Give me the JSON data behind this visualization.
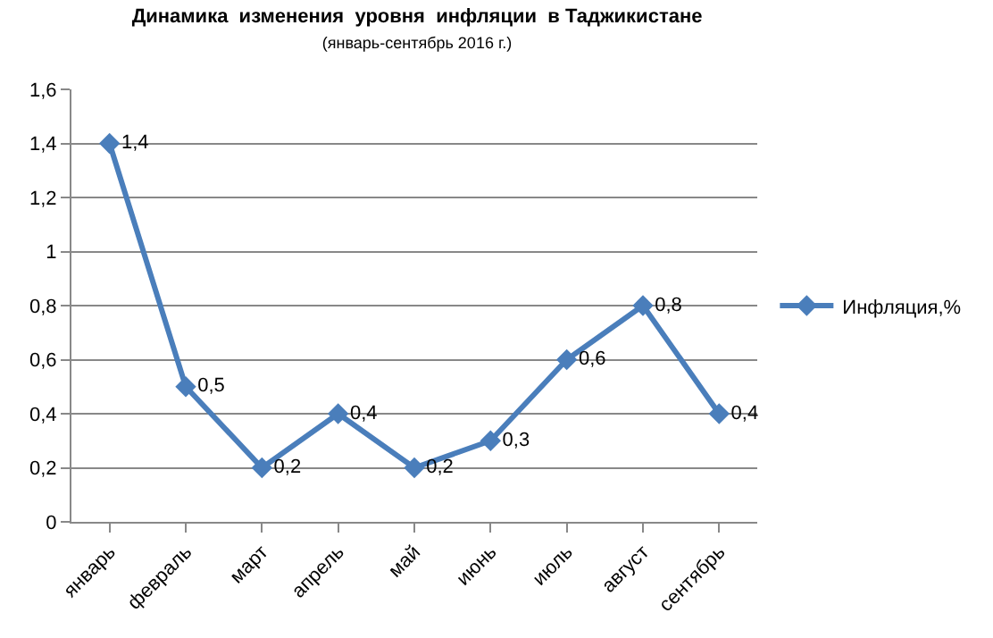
{
  "chart_data": {
    "type": "line",
    "title": "Динамика  изменения  уровня  инфляции  в Таджикистане",
    "subtitle": "(январь-сентябрь 2016 г.)",
    "categories": [
      "январь",
      "февраль",
      "март",
      "апрель",
      "май",
      "июнь",
      "июль",
      "август",
      "сентябрь"
    ],
    "series": [
      {
        "name": "Инфляция,%",
        "color": "#4a7ebb",
        "values": [
          1.4,
          0.5,
          0.2,
          0.4,
          0.2,
          0.3,
          0.6,
          0.8,
          0.4
        ],
        "value_labels": [
          "1,4",
          "0,5",
          "0,2",
          "0,4",
          "0,2",
          "0,3",
          "0,6",
          "0,8",
          "0,4"
        ]
      }
    ],
    "ylim": [
      0,
      1.6
    ],
    "yticks": [
      0,
      {
        "value": 0.2,
        "label": "0,2"
      },
      {
        "value": 0.4,
        "label": "0,4"
      },
      {
        "value": 0.6,
        "label": "0,6"
      },
      {
        "value": 0.8,
        "label": "0,8"
      },
      1,
      {
        "value": 1.2,
        "label": "1,2"
      },
      {
        "value": 1.4,
        "label": "1,4"
      },
      {
        "value": 1.6,
        "label": "1,6"
      }
    ],
    "grid": "y",
    "legend": "right",
    "marker": "diamond",
    "line_style": "solid"
  }
}
